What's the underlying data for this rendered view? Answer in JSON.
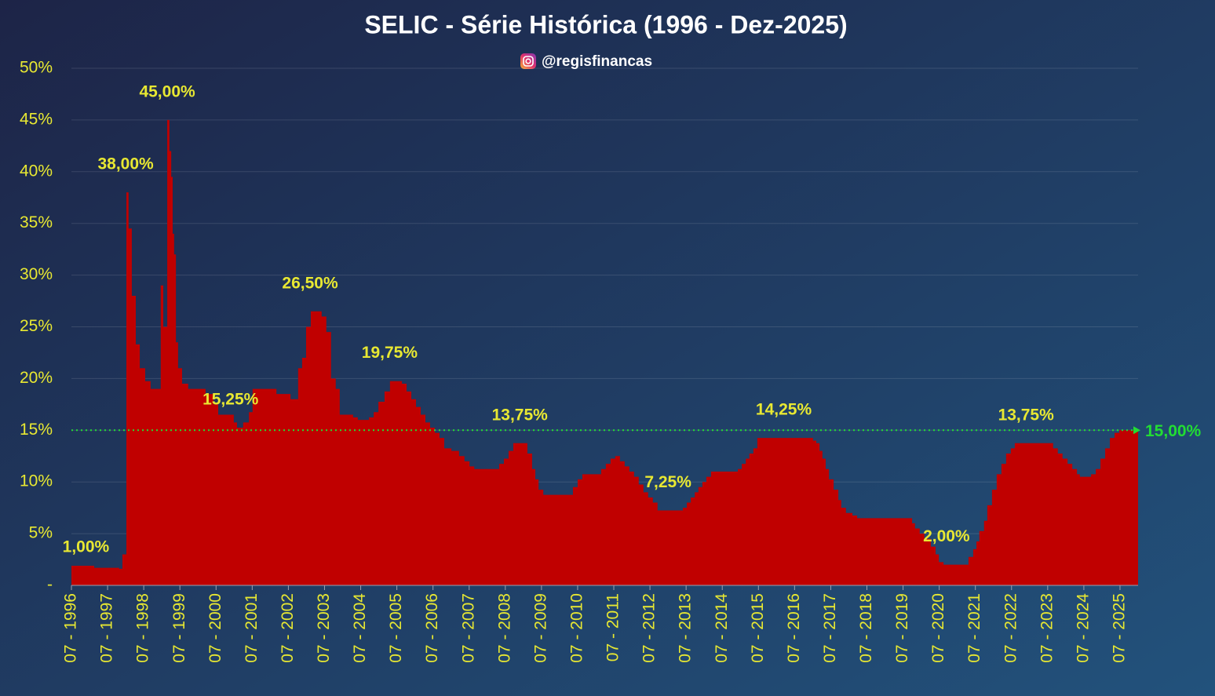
{
  "chart_data": {
    "type": "step-area",
    "title": "SELIC - Série Histórica (1996 - Dez-2025)",
    "subtitle": "@regisfinancas",
    "color": "#c00000",
    "x": [
      1996.5,
      1997.13,
      1997.82,
      1997.91,
      1998.02,
      1998.08,
      1998.17,
      1998.28,
      1998.39,
      1998.54,
      1998.69,
      1998.97,
      1999.04,
      1999.15,
      1999.21,
      1999.26,
      1999.3,
      1999.34,
      1999.39,
      1999.45,
      1999.56,
      1999.73,
      2000.21,
      2000.43,
      2000.56,
      2000.99,
      2001.08,
      2001.25,
      2001.41,
      2001.51,
      2002.17,
      2002.56,
      2002.77,
      2002.88,
      2002.99,
      2003.12,
      2003.42,
      2003.55,
      2003.68,
      2003.81,
      2003.92,
      2004.29,
      2004.42,
      2004.73,
      2004.86,
      2004.99,
      2005.16,
      2005.31,
      2005.64,
      2005.77,
      2005.9,
      2006.03,
      2006.16,
      2006.29,
      2006.42,
      2006.55,
      2006.68,
      2006.81,
      2007.01,
      2007.22,
      2007.37,
      2007.51,
      2007.64,
      2008.2,
      2008.33,
      2008.46,
      2008.59,
      2008.72,
      2009.02,
      2009.11,
      2009.24,
      2009.33,
      2009.42,
      2009.55,
      2010.28,
      2010.37,
      2010.5,
      2010.63,
      2011.07,
      2011.15,
      2011.28,
      2011.41,
      2011.54,
      2011.67,
      2011.8,
      2011.93,
      2012.06,
      2012.19,
      2012.32,
      2012.45,
      2012.58,
      2012.71,
      2013.32,
      2013.41,
      2013.52,
      2013.63,
      2013.74,
      2013.84,
      2013.95,
      2014.06,
      2014.19,
      2014.82,
      2014.93,
      2015.04,
      2015.15,
      2015.25,
      2015.36,
      2015.47,
      2016.93,
      2017.01,
      2017.1,
      2017.19,
      2017.27,
      2017.36,
      2017.45,
      2017.58,
      2017.71,
      2017.79,
      2017.92,
      2018.1,
      2018.23,
      2019.62,
      2019.75,
      2019.83,
      2019.96,
      2020.09,
      2020.27,
      2020.4,
      2020.49,
      2020.62,
      2021.22,
      2021.31,
      2021.44,
      2021.53,
      2021.61,
      2021.74,
      2021.83,
      2021.96,
      2022.09,
      2022.22,
      2022.35,
      2022.48,
      2022.59,
      2023.57,
      2023.65,
      2023.78,
      2023.91,
      2024.05,
      2024.18,
      2024.31,
      2024.39,
      2024.7,
      2024.83,
      2024.96,
      2025.09,
      2025.22,
      2025.35,
      2025.48
    ],
    "values": [
      1.9,
      1.7,
      1.6,
      3.0,
      38,
      34.5,
      28,
      23.3,
      21,
      19.75,
      19,
      29,
      25,
      45,
      42,
      39.5,
      34,
      32,
      23.5,
      21,
      19.5,
      19,
      18.5,
      17.5,
      16.5,
      15.75,
      15.25,
      15.75,
      16.75,
      19,
      18.5,
      18,
      21,
      22,
      25,
      26.5,
      26,
      24.5,
      20,
      19,
      16.5,
      16.25,
      16,
      16.25,
      16.75,
      17.75,
      18.75,
      19.75,
      19.5,
      18.75,
      18,
      17.25,
      16.5,
      15.75,
      15.25,
      14.75,
      14.25,
      13.25,
      13,
      12.5,
      12,
      11.5,
      11.25,
      11.25,
      11.75,
      12.25,
      13,
      13.75,
      13.75,
      12.75,
      11.25,
      10.25,
      9.25,
      8.75,
      8.75,
      9.5,
      10.25,
      10.75,
      10.75,
      11.25,
      11.75,
      12.25,
      12.5,
      12,
      11.5,
      11,
      10.5,
      9.75,
      9,
      8.5,
      8,
      7.25,
      7.25,
      7.5,
      8,
      8.5,
      9,
      9.5,
      10,
      10.5,
      11,
      11,
      11.25,
      11.75,
      12.25,
      12.75,
      13.25,
      14.25,
      14.25,
      14,
      13.75,
      13,
      12.25,
      11.25,
      10.25,
      9.25,
      8.25,
      7.5,
      7,
      6.75,
      6.5,
      6.5,
      6,
      5.5,
      5,
      4.5,
      3.75,
      3,
      2.25,
      2,
      2,
      2.75,
      3.5,
      4.25,
      5.25,
      6.25,
      7.75,
      9.25,
      10.75,
      11.75,
      12.75,
      13.25,
      13.75,
      13.75,
      13.25,
      12.75,
      12.25,
      11.75,
      11.25,
      10.75,
      10.5,
      10.75,
      11.25,
      12.25,
      13.25,
      14.25,
      14.75,
      15
    ],
    "xlim": [
      1996.5,
      2026.0
    ],
    "xticks": [
      {
        "value": 1996.5,
        "label": "07 - 1996"
      },
      {
        "value": 1997.5,
        "label": "07 - 1997"
      },
      {
        "value": 1998.5,
        "label": "07 - 1998"
      },
      {
        "value": 1999.5,
        "label": "07 - 1999"
      },
      {
        "value": 2000.5,
        "label": "07 - 2000"
      },
      {
        "value": 2001.5,
        "label": "07 - 2001"
      },
      {
        "value": 2002.5,
        "label": "07 - 2002"
      },
      {
        "value": 2003.5,
        "label": "07 - 2003"
      },
      {
        "value": 2004.5,
        "label": "07 - 2004"
      },
      {
        "value": 2005.5,
        "label": "07 - 2005"
      },
      {
        "value": 2006.5,
        "label": "07 - 2006"
      },
      {
        "value": 2007.5,
        "label": "07 - 2007"
      },
      {
        "value": 2008.5,
        "label": "07 - 2008"
      },
      {
        "value": 2009.5,
        "label": "07 - 2009"
      },
      {
        "value": 2010.5,
        "label": "07 - 2010"
      },
      {
        "value": 2011.5,
        "label": "07 - 2011"
      },
      {
        "value": 2012.5,
        "label": "07 - 2012"
      },
      {
        "value": 2013.5,
        "label": "07 - 2013"
      },
      {
        "value": 2014.5,
        "label": "07 - 2014"
      },
      {
        "value": 2015.5,
        "label": "07 - 2015"
      },
      {
        "value": 2016.5,
        "label": "07 - 2016"
      },
      {
        "value": 2017.5,
        "label": "07 - 2017"
      },
      {
        "value": 2018.5,
        "label": "07 - 2018"
      },
      {
        "value": 2019.5,
        "label": "07 - 2019"
      },
      {
        "value": 2020.5,
        "label": "07 - 2020"
      },
      {
        "value": 2021.5,
        "label": "07 - 2021"
      },
      {
        "value": 2022.5,
        "label": "07 - 2022"
      },
      {
        "value": 2023.5,
        "label": "07 - 2023"
      },
      {
        "value": 2024.5,
        "label": "07 - 2024"
      },
      {
        "value": 2025.5,
        "label": "07 - 2025"
      }
    ],
    "ylim": [
      0,
      50
    ],
    "yticks": [
      {
        "value": 0,
        "label": "-"
      },
      {
        "value": 5,
        "label": "5%"
      },
      {
        "value": 10,
        "label": "10%"
      },
      {
        "value": 15,
        "label": "15%"
      },
      {
        "value": 20,
        "label": "20%"
      },
      {
        "value": 25,
        "label": "25%"
      },
      {
        "value": 30,
        "label": "30%"
      },
      {
        "value": 35,
        "label": "35%"
      },
      {
        "value": 40,
        "label": "40%"
      },
      {
        "value": 45,
        "label": "45%"
      },
      {
        "value": 50,
        "label": "50%"
      }
    ],
    "grid": true,
    "annotations": [
      {
        "text": "1,00%",
        "x": 1996.9,
        "value": 1
      },
      {
        "text": "38,00%",
        "x": 1998.0,
        "value": 38
      },
      {
        "text": "45,00%",
        "x": 1999.15,
        "value": 45
      },
      {
        "text": "15,25%",
        "x": 2000.9,
        "value": 15.25
      },
      {
        "text": "26,50%",
        "x": 2003.1,
        "value": 26.5
      },
      {
        "text": "19,75%",
        "x": 2005.3,
        "value": 19.75
      },
      {
        "text": "13,75%",
        "x": 2008.9,
        "value": 13.75
      },
      {
        "text": "7,25%",
        "x": 2013.0,
        "value": 7.25
      },
      {
        "text": "14,25%",
        "x": 2016.2,
        "value": 14.25
      },
      {
        "text": "2,00%",
        "x": 2020.7,
        "value": 2
      },
      {
        "text": "13,75%",
        "x": 2022.9,
        "value": 13.75
      }
    ],
    "reference": {
      "value": 15,
      "label": "15,00%",
      "color": "#22dd33"
    }
  }
}
